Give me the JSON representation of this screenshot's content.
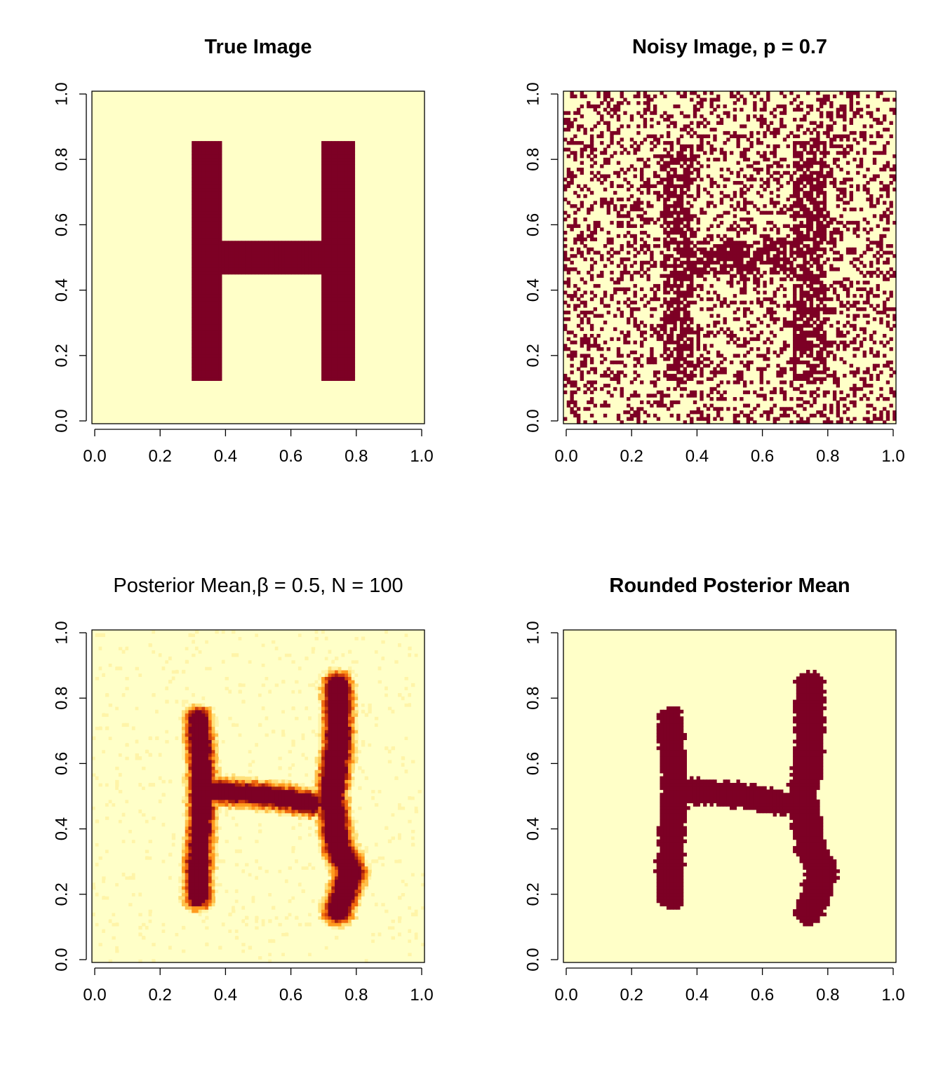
{
  "palette": {
    "background": "#FFFFC8",
    "foreground": "#7D0025",
    "heat": [
      "#FFFFC8",
      "#FFF4A8",
      "#FFE07A",
      "#FFC04A",
      "#FF9A1E",
      "#F06A10",
      "#D0400A",
      "#A8200C",
      "#7D0025"
    ]
  },
  "chart_data": [
    {
      "type": "heatmap",
      "title": "True Image",
      "bold_title": true,
      "xlim": [
        0,
        1
      ],
      "ylim": [
        0,
        1
      ],
      "x_ticks": [
        "0.0",
        "0.2",
        "0.4",
        "0.6",
        "0.8",
        "1.0"
      ],
      "y_ticks": [
        "0.0",
        "0.2",
        "0.4",
        "0.6",
        "0.8",
        "1.0"
      ],
      "value_range": [
        0,
        1
      ],
      "shapes": [
        {
          "x": [
            0.3,
            0.39
          ],
          "y": [
            0.13,
            0.85
          ],
          "value": 1
        },
        {
          "x": [
            0.69,
            0.79
          ],
          "y": [
            0.13,
            0.85
          ],
          "value": 1
        },
        {
          "x": [
            0.39,
            0.69
          ],
          "y": [
            0.455,
            0.545
          ],
          "value": 1
        }
      ]
    },
    {
      "type": "heatmap",
      "title": "Noisy Image, p = 0.7",
      "bold_title": true,
      "xlim": [
        0,
        1
      ],
      "ylim": [
        0,
        1
      ],
      "x_ticks": [
        "0.0",
        "0.2",
        "0.4",
        "0.6",
        "0.8",
        "1.0"
      ],
      "y_ticks": [
        "0.0",
        "0.2",
        "0.4",
        "0.6",
        "0.8",
        "1.0"
      ],
      "grid_size": 100,
      "noise_flip_probability": 0.3
    },
    {
      "type": "heatmap",
      "title": "Posterior Mean,β = 0.5, N = 100",
      "bold_title": false,
      "xlim": [
        0,
        1
      ],
      "ylim": [
        0,
        1
      ],
      "x_ticks": [
        "0.0",
        "0.2",
        "0.4",
        "0.6",
        "0.8",
        "1.0"
      ],
      "y_ticks": [
        "0.0",
        "0.2",
        "0.4",
        "0.6",
        "0.8",
        "1.0"
      ],
      "value_range": [
        0,
        1
      ],
      "strokes": [
        {
          "path": [
            [
              0.32,
              0.73
            ],
            [
              0.33,
              0.6
            ],
            [
              0.33,
              0.45
            ],
            [
              0.32,
              0.3
            ],
            [
              0.32,
              0.2
            ]
          ],
          "width": 0.075
        },
        {
          "path": [
            [
              0.74,
              0.83
            ],
            [
              0.74,
              0.65
            ],
            [
              0.72,
              0.5
            ],
            [
              0.74,
              0.35
            ],
            [
              0.78,
              0.27
            ],
            [
              0.74,
              0.16
            ]
          ],
          "width": 0.085
        },
        {
          "path": [
            [
              0.33,
              0.52
            ],
            [
              0.45,
              0.51
            ],
            [
              0.55,
              0.5
            ],
            [
              0.66,
              0.48
            ]
          ],
          "width": 0.07
        }
      ]
    },
    {
      "type": "heatmap",
      "title": "Rounded Posterior Mean",
      "bold_title": true,
      "xlim": [
        0,
        1
      ],
      "ylim": [
        0,
        1
      ],
      "x_ticks": [
        "0.0",
        "0.2",
        "0.4",
        "0.6",
        "0.8",
        "1.0"
      ],
      "y_ticks": [
        "0.0",
        "0.2",
        "0.4",
        "0.6",
        "0.8",
        "1.0"
      ],
      "value_range": [
        0,
        1
      ],
      "threshold": 0.5,
      "derived_from": "Posterior Mean"
    }
  ]
}
